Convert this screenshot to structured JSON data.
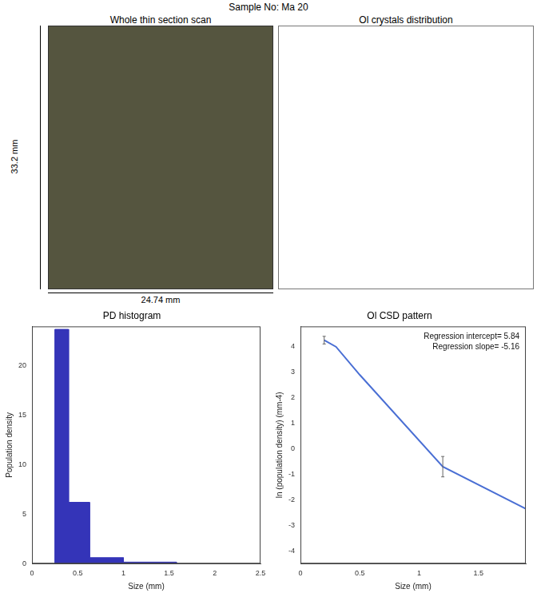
{
  "title": "Sample No: Ma 20",
  "panels": [
    {
      "title": "Whole thin section scan",
      "height_label": "33.2 mm",
      "width_label": "24.74 mm"
    },
    {
      "title": "Ol crystals distribution"
    }
  ],
  "chart_data": [
    {
      "type": "histogram",
      "title": "PD histogram",
      "x_label": "Size (mm)",
      "y_label": "Population density",
      "bins": [
        0.25,
        0.4,
        0.63,
        1,
        1.58
      ],
      "counts": [
        23.7,
        6.2,
        0.6,
        0.15
      ],
      "color": "#3434b8",
      "xlim": [
        0,
        2.5
      ],
      "xticks": [
        0,
        0.5,
        1,
        1.5,
        2,
        2.5
      ],
      "ylim": [
        0,
        24
      ],
      "yticks": [
        0,
        5,
        10,
        15,
        20
      ],
      "grid": false
    },
    {
      "type": "line",
      "title": "Ol CSD pattern",
      "x_label": "Size (mm)",
      "y_label": "ln (population density) (mm-4)",
      "x": [
        0.2,
        0.3,
        0.5,
        1.2,
        1.9
      ],
      "values": [
        4.26,
        4.0,
        2.9,
        -0.7,
        -2.35
      ],
      "error": [
        0.15,
        null,
        null,
        0.4,
        null
      ],
      "color": "#4a6fd4",
      "xlim": [
        0,
        1.9
      ],
      "xticks": [
        0,
        0.5,
        1,
        1.5
      ],
      "ylim": [
        -4.5,
        4.8
      ],
      "yticks": [
        -4,
        -3,
        -2,
        -1,
        0,
        1,
        2,
        3,
        4
      ],
      "grid": false,
      "annotations": [
        "Regression intercept= 5.84",
        "Regression slope= -5.16"
      ]
    }
  ]
}
